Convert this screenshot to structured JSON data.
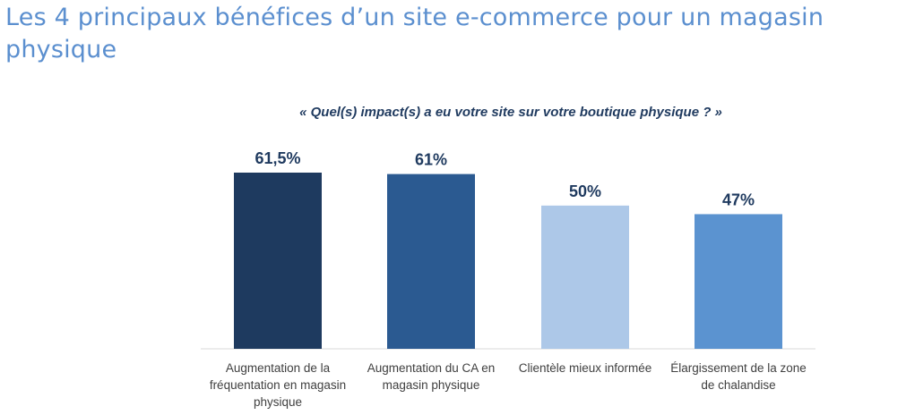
{
  "page": {
    "title": "Les 4 principaux bénéfices d’un site e-commerce pour un magasin physique"
  },
  "chart_data": {
    "type": "bar",
    "title": "« Quel(s) impact(s) a eu votre site sur votre boutique physique ? »",
    "categories": [
      "Augmentation de la fréquentation en magasin physique",
      "Augmentation du CA en magasin physique",
      "Clientèle mieux informée",
      "Élargissement de la zone de chalandise"
    ],
    "values": [
      61.5,
      61,
      50,
      47
    ],
    "data_labels": [
      "61,5%",
      "61%",
      "50%",
      "47%"
    ],
    "colors": [
      "#1e3a5f",
      "#2b5a91",
      "#adc8e8",
      "#5b93d0"
    ],
    "label_color": "#1f3a5f",
    "xlabel": "",
    "ylabel": "",
    "ylim": [
      0,
      61.5
    ],
    "grid": false,
    "legend": "none"
  }
}
